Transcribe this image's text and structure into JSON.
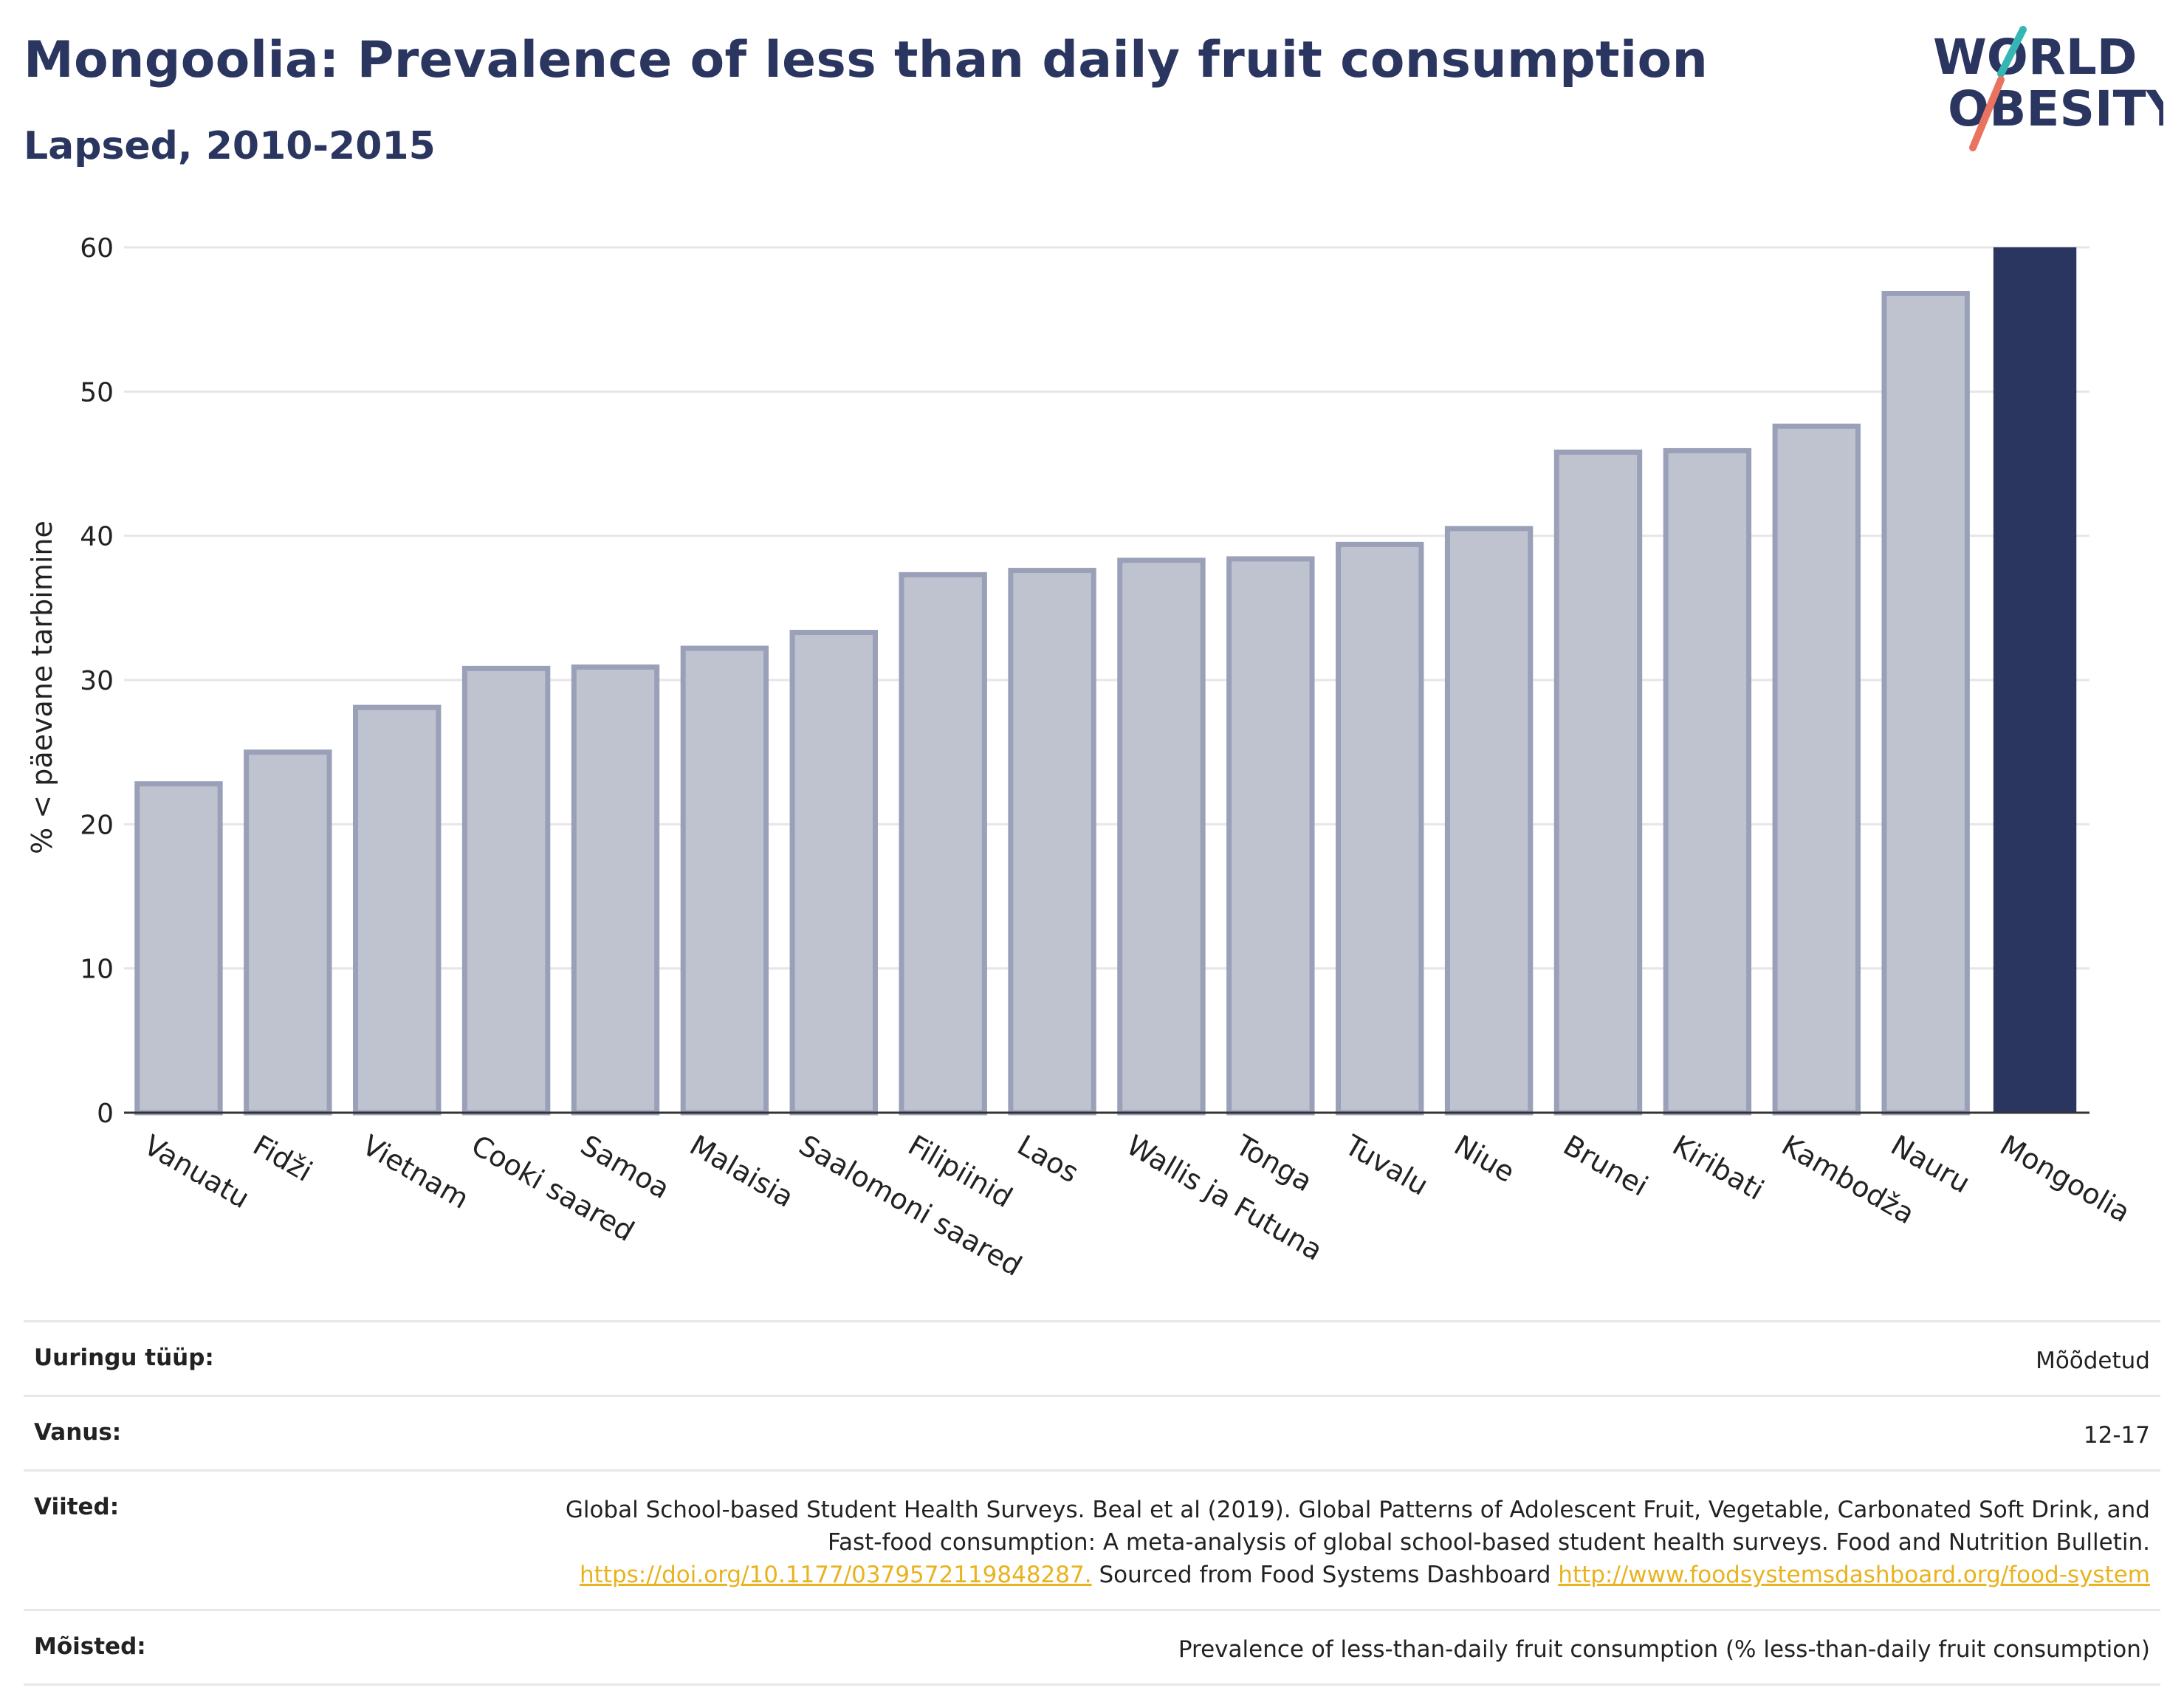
{
  "header": {
    "title": "Mongoolia: Prevalence of less than daily fruit consumption",
    "subtitle": "Lapsed, 2010-2015"
  },
  "logo": {
    "line1": "WORLD",
    "line2": "OBESITY"
  },
  "colors": {
    "accent": "#2a3560",
    "bar_fill": "#bfc3d0",
    "bar_stroke": "#9aa0b8",
    "link": "#e8b31e"
  },
  "chart_data": {
    "type": "bar",
    "title": "Mongoolia: Prevalence of less than daily fruit consumption",
    "subtitle": "Lapsed, 2010-2015",
    "ylabel": "% < päevane tarbimine",
    "xlabel": "",
    "ylim": [
      0,
      60
    ],
    "yticks": [
      0,
      10,
      20,
      30,
      40,
      50,
      60
    ],
    "grid": true,
    "highlight": "Mongoolia",
    "categories": [
      "Vanuatu",
      "Fidži",
      "Vietnam",
      "Cooki saared",
      "Samoa",
      "Malaisia",
      "Saalomoni saared",
      "Filipiinid",
      "Laos",
      "Wallis ja Futuna",
      "Tonga",
      "Tuvalu",
      "Niue",
      "Brunei",
      "Kiribati",
      "Kambodža",
      "Nauru",
      "Mongoolia"
    ],
    "values": [
      22.8,
      25.0,
      28.1,
      30.8,
      30.9,
      32.2,
      33.3,
      37.3,
      37.6,
      38.3,
      38.4,
      39.4,
      40.5,
      45.8,
      45.9,
      47.6,
      56.8,
      60.0
    ]
  },
  "meta": {
    "rows": [
      {
        "label": "Uuringu tüüp:",
        "value": "Mõõdetud"
      },
      {
        "label": "Vanus:",
        "value": "12-17"
      },
      {
        "label": "Viited:",
        "value_text": "Global School-based Student Health Surveys. Beal et al (2019). Global Patterns of Adolescent Fruit, Vegetable, Carbonated Soft Drink, and Fast-food consumption: A meta-analysis of global school-based student health surveys. Food and Nutrition Bulletin.",
        "link1": "https://doi.org/10.1177/0379572119848287.",
        "value_mid": "Sourced from Food Systems Dashboard",
        "link2": "http://www.foodsystemsdashboard.org/food-system"
      },
      {
        "label": "Mõisted:",
        "value": "Prevalence of less-than-daily fruit consumption (% less-than-daily fruit consumption)"
      }
    ]
  }
}
